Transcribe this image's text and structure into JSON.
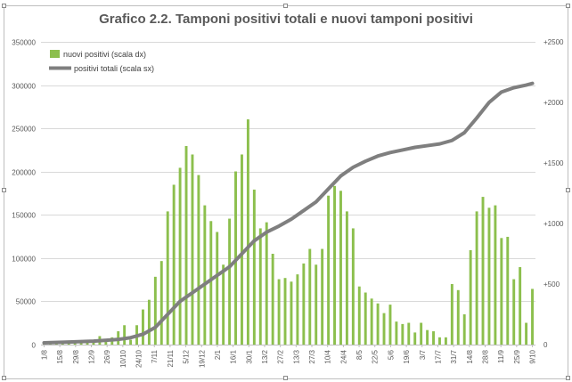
{
  "chart_data": {
    "type": "bar+line",
    "title": "Grafico 2.2. Tamponi positivi totali e nuovi tamponi positivi",
    "legend": {
      "placement": "top-left",
      "bar_label": "nuovi positivi (scala dx)",
      "line_label": "positivi totali (scala sx)"
    },
    "colors": {
      "bar": "#8cbf4d",
      "line": "#7f7f7f",
      "grid": "#d9d9d9",
      "axis_text": "#595959",
      "border": "#bfbfbf"
    },
    "y_left": {
      "min": 0,
      "max": 350000,
      "ticks": [
        "0",
        "50000",
        "100000",
        "150000",
        "200000",
        "250000",
        "300000",
        "350000"
      ]
    },
    "y_right": {
      "min": 0,
      "max": 2500,
      "ticks": [
        "0",
        "+500",
        "+1000",
        "+1500",
        "+2000",
        "+2500"
      ]
    },
    "x_ticks": [
      "1/8",
      "15/8",
      "29/8",
      "12/9",
      "26/9",
      "10/10",
      "24/10",
      "7/11",
      "21/11",
      "5/12",
      "19/12",
      "2/1",
      "16/1",
      "30/1",
      "13/2",
      "27/2",
      "13/3",
      "27/3",
      "10/4",
      "24/4",
      "8/5",
      "22/5",
      "5/6",
      "19/6",
      "3/7",
      "17/7",
      "31/7",
      "14/8",
      "28/8",
      "11/9",
      "25/9",
      "9/10"
    ],
    "bars": {
      "name": "nuovi positivi (scala dx)",
      "values": [
        [
          0,
          10
        ],
        [
          1,
          15
        ],
        [
          2,
          15
        ],
        [
          3,
          25
        ],
        [
          4,
          30
        ],
        [
          5,
          20
        ],
        [
          6,
          25
        ],
        [
          7,
          30
        ],
        [
          8,
          40
        ],
        [
          9,
          70
        ],
        [
          10,
          35
        ],
        [
          11,
          60
        ],
        [
          12,
          110
        ],
        [
          13,
          160
        ],
        [
          14,
          40
        ],
        [
          15,
          160
        ],
        [
          16,
          290
        ],
        [
          17,
          370
        ],
        [
          18,
          560
        ],
        [
          19,
          690
        ],
        [
          20,
          1100
        ],
        [
          21,
          1320
        ],
        [
          22,
          1460
        ],
        [
          23,
          1640
        ],
        [
          24,
          1570
        ],
        [
          25,
          1400
        ],
        [
          26,
          1150
        ],
        [
          27,
          1020
        ],
        [
          28,
          930
        ],
        [
          29,
          660
        ],
        [
          30,
          1040
        ],
        [
          31,
          1430
        ],
        [
          32,
          1570
        ],
        [
          33,
          1860
        ],
        [
          34,
          1280
        ],
        [
          35,
          960
        ],
        [
          36,
          1010
        ],
        [
          37,
          750
        ],
        [
          38,
          540
        ],
        [
          39,
          550
        ],
        [
          40,
          520
        ],
        [
          41,
          580
        ],
        [
          42,
          670
        ],
        [
          43,
          790
        ],
        [
          44,
          660
        ],
        [
          45,
          790
        ],
        [
          46,
          1230
        ],
        [
          47,
          1310
        ],
        [
          48,
          1270
        ],
        [
          49,
          1100
        ],
        [
          50,
          960
        ],
        [
          51,
          480
        ],
        [
          52,
          430
        ],
        [
          53,
          380
        ],
        [
          54,
          340
        ],
        [
          55,
          260
        ],
        [
          56,
          330
        ],
        [
          57,
          190
        ],
        [
          58,
          170
        ],
        [
          59,
          180
        ],
        [
          60,
          100
        ],
        [
          61,
          180
        ],
        [
          62,
          120
        ],
        [
          63,
          110
        ],
        [
          64,
          60
        ],
        [
          65,
          60
        ],
        [
          66,
          500
        ],
        [
          67,
          450
        ],
        [
          68,
          250
        ],
        [
          69,
          780
        ],
        [
          70,
          1100
        ],
        [
          71,
          1220
        ],
        [
          72,
          1130
        ],
        [
          73,
          1150
        ],
        [
          74,
          880
        ],
        [
          75,
          890
        ],
        [
          76,
          540
        ],
        [
          77,
          640
        ],
        [
          78,
          180
        ],
        [
          79,
          460
        ]
      ]
    },
    "line": {
      "name": "positivi totali (scala sx)",
      "points": [
        [
          0,
          2000
        ],
        [
          4,
          3000
        ],
        [
          8,
          4000
        ],
        [
          12,
          6000
        ],
        [
          14,
          8000
        ],
        [
          16,
          12000
        ],
        [
          18,
          20000
        ],
        [
          20,
          35000
        ],
        [
          22,
          50000
        ],
        [
          24,
          60000
        ],
        [
          26,
          70000
        ],
        [
          28,
          80000
        ],
        [
          30,
          90000
        ],
        [
          32,
          105000
        ],
        [
          34,
          120000
        ],
        [
          36,
          130000
        ],
        [
          38,
          137000
        ],
        [
          40,
          145000
        ],
        [
          42,
          155000
        ],
        [
          44,
          165000
        ],
        [
          46,
          180000
        ],
        [
          48,
          195000
        ],
        [
          50,
          205000
        ],
        [
          52,
          212000
        ],
        [
          54,
          218000
        ],
        [
          56,
          222000
        ],
        [
          58,
          225000
        ],
        [
          60,
          228000
        ],
        [
          62,
          230000
        ],
        [
          64,
          232000
        ],
        [
          66,
          236000
        ],
        [
          68,
          245000
        ],
        [
          70,
          262000
        ],
        [
          72,
          280000
        ],
        [
          74,
          292000
        ],
        [
          76,
          297000
        ],
        [
          78,
          300000
        ],
        [
          79,
          302000
        ]
      ]
    }
  }
}
